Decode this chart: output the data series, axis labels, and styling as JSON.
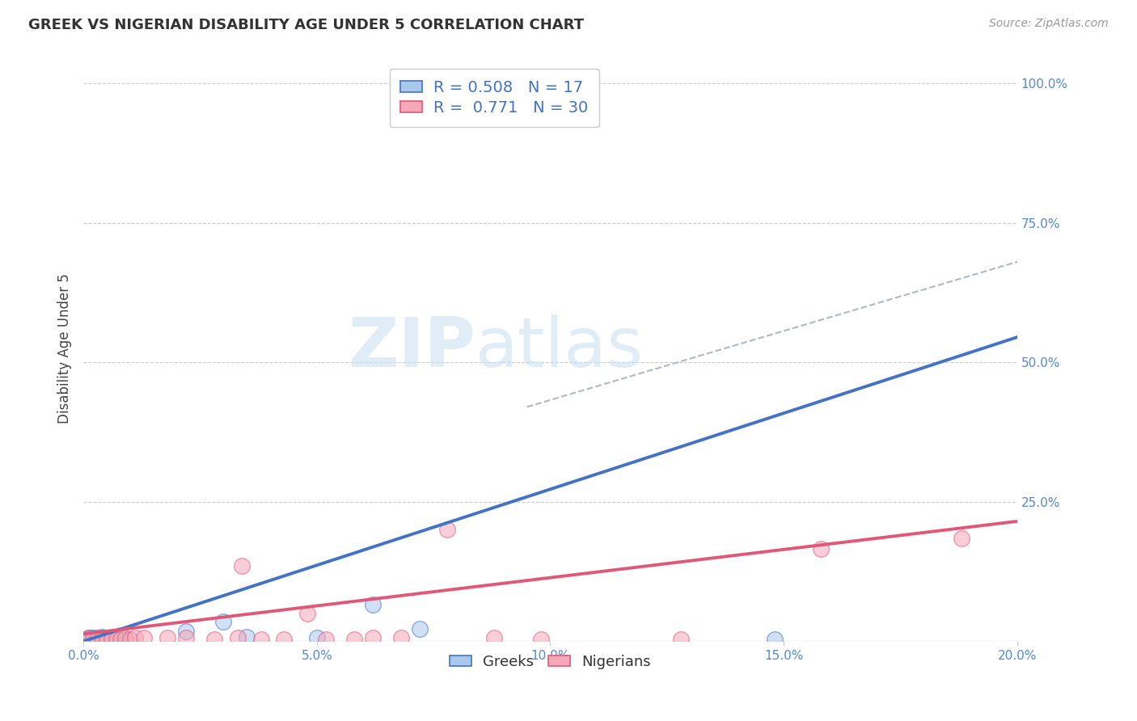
{
  "title": "GREEK VS NIGERIAN DISABILITY AGE UNDER 5 CORRELATION CHART",
  "source": "Source: ZipAtlas.com",
  "ylabel": "Disability Age Under 5",
  "right_yticks": [
    "100.0%",
    "75.0%",
    "50.0%",
    "25.0%"
  ],
  "right_ytick_vals": [
    1.0,
    0.75,
    0.5,
    0.25
  ],
  "xlim": [
    0.0,
    0.2
  ],
  "ylim": [
    0.0,
    1.05
  ],
  "greek_color": "#aac8ee",
  "nigerian_color": "#f4a8b8",
  "greek_line_color": "#4472c4",
  "nigerian_line_color": "#e05878",
  "dashed_line_color": "#b0b8c0",
  "greek_R": 0.508,
  "greek_N": 17,
  "nigerian_R": 0.771,
  "nigerian_N": 30,
  "greek_scatter_x": [
    0.001,
    0.0015,
    0.002,
    0.003,
    0.004,
    0.005,
    0.006,
    0.007,
    0.008,
    0.009,
    0.022,
    0.03,
    0.035,
    0.05,
    0.062,
    0.072,
    0.148
  ],
  "greek_scatter_y": [
    0.006,
    0.006,
    0.006,
    0.006,
    0.008,
    0.004,
    0.006,
    0.004,
    0.01,
    0.004,
    0.018,
    0.035,
    0.008,
    0.007,
    0.065,
    0.022,
    0.004
  ],
  "nigerian_scatter_x": [
    0.001,
    0.002,
    0.003,
    0.004,
    0.005,
    0.006,
    0.007,
    0.008,
    0.009,
    0.01,
    0.011,
    0.013,
    0.018,
    0.022,
    0.028,
    0.033,
    0.034,
    0.038,
    0.043,
    0.048,
    0.052,
    0.058,
    0.062,
    0.068,
    0.078,
    0.088,
    0.098,
    0.128,
    0.158,
    0.188
  ],
  "nigerian_scatter_y": [
    0.005,
    0.004,
    0.004,
    0.006,
    0.004,
    0.004,
    0.004,
    0.004,
    0.006,
    0.004,
    0.006,
    0.006,
    0.006,
    0.006,
    0.004,
    0.006,
    0.135,
    0.004,
    0.004,
    0.05,
    0.004,
    0.004,
    0.006,
    0.006,
    0.2,
    0.006,
    0.004,
    0.004,
    0.165,
    0.185
  ],
  "greek_trend_x": [
    0.0,
    0.2
  ],
  "greek_trend_y": [
    0.0,
    0.545
  ],
  "nigerian_trend_x": [
    0.0,
    0.2
  ],
  "nigerian_trend_y": [
    0.013,
    0.215
  ],
  "dashed_trend_x": [
    0.095,
    0.2
  ],
  "dashed_trend_y": [
    0.42,
    0.68
  ],
  "watermark_zip": "ZIP",
  "watermark_atlas": "atlas",
  "background_color": "#ffffff",
  "grid_color": "#cccccc",
  "xtick_positions": [
    0.0,
    0.05,
    0.1,
    0.15,
    0.2
  ],
  "xtick_labels": [
    "0.0%",
    "5.0%",
    "10.0%",
    "15.0%",
    "20.0%"
  ]
}
